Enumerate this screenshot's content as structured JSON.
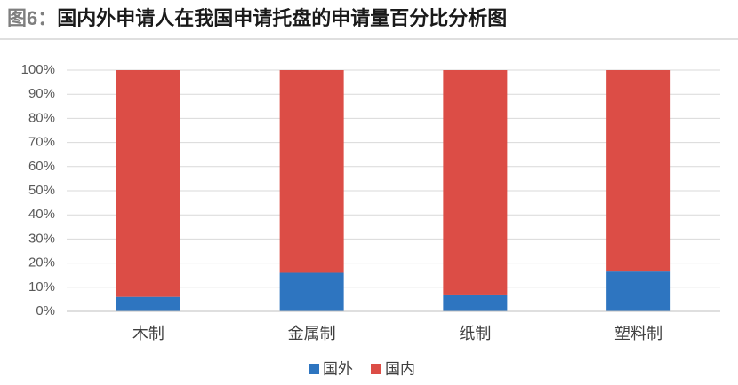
{
  "chart_data": {
    "type": "stacked_bar",
    "figure_label": "图6：",
    "title": "国内外申请人在我国申请托盘的申请量百分比分析图",
    "categories": [
      "木制",
      "金属制",
      "纸制",
      "塑料制"
    ],
    "series": [
      {
        "name": "国外",
        "color": "#2e75c0",
        "values": [
          6,
          16,
          7,
          16.5
        ]
      },
      {
        "name": "国内",
        "color": "#dc4d46",
        "values": [
          94,
          84,
          93,
          83.5
        ]
      }
    ],
    "ylim": [
      0,
      100
    ],
    "yticks": [
      {
        "value": 0,
        "label": "0%"
      },
      {
        "value": 10,
        "label": "10%"
      },
      {
        "value": 20,
        "label": "20%"
      },
      {
        "value": 30,
        "label": "30%"
      },
      {
        "value": 40,
        "label": "40%"
      },
      {
        "value": 50,
        "label": "50%"
      },
      {
        "value": 60,
        "label": "60%"
      },
      {
        "value": 70,
        "label": "70%"
      },
      {
        "value": 80,
        "label": "80%"
      },
      {
        "value": 90,
        "label": "90%"
      },
      {
        "value": 100,
        "label": "100%"
      }
    ],
    "grid": true,
    "legend": "bottom"
  }
}
